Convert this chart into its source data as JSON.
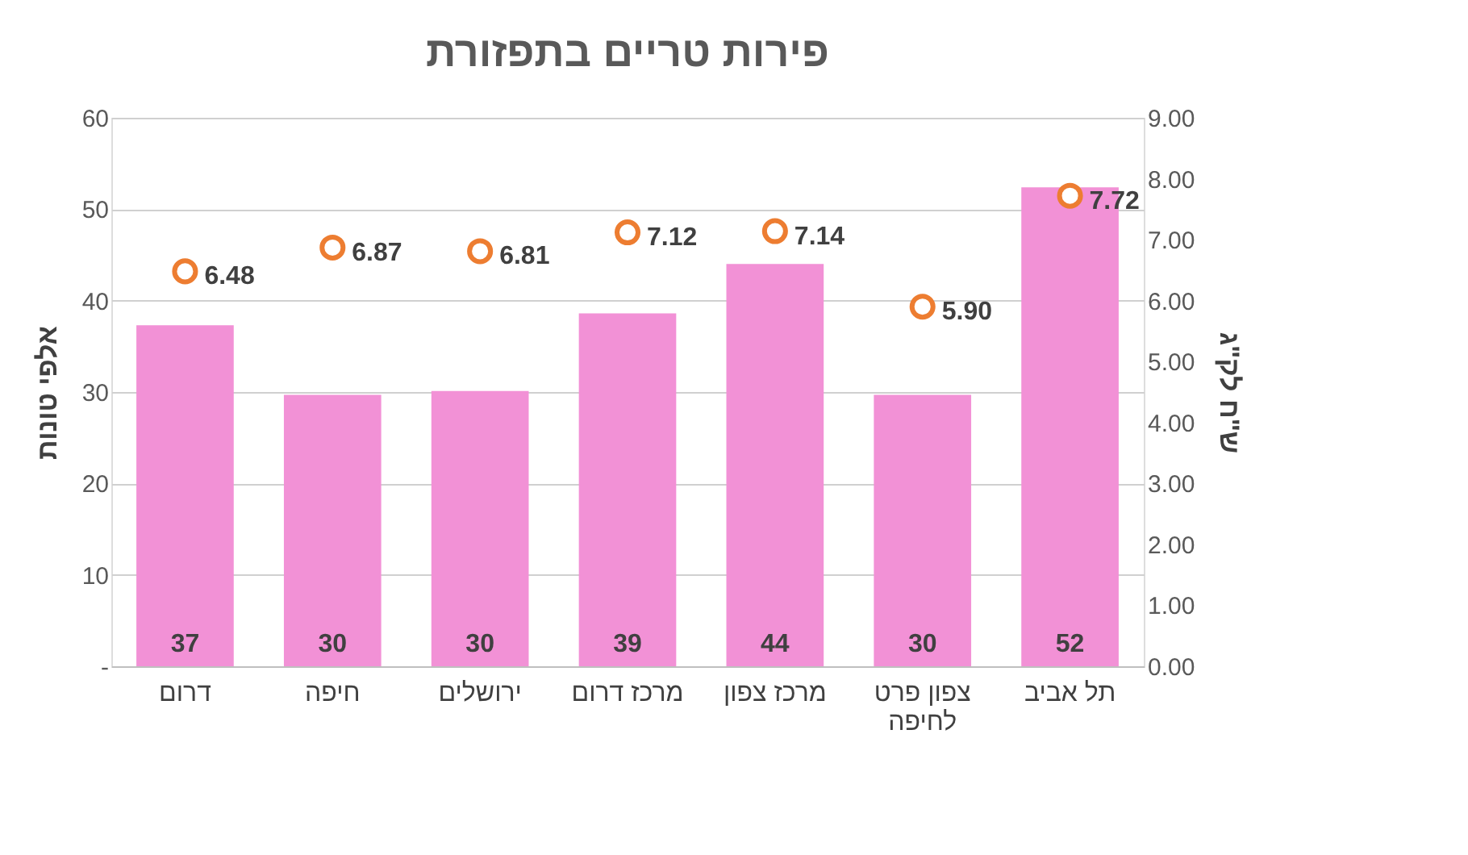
{
  "chart_data": {
    "type": "bar",
    "title": "פירות טריים בתפזורת",
    "ylabel": "אלפי טונות",
    "y2label": "ש\"ח לק\"ג",
    "categories": [
      "דרום",
      "חיפה",
      "ירושלים",
      "מרכז דרום",
      "מרכז צפון",
      "צפון פרט לחיפה",
      "תל אביב"
    ],
    "series": [
      {
        "color": "#f291d6",
        "values": [
          37.3,
          29.7,
          30.1,
          38.6,
          44.0,
          29.7,
          52.4
        ],
        "value_labels": [
          "37",
          "30",
          "30",
          "39",
          "44",
          "30",
          "52"
        ]
      },
      {
        "type": "scatter",
        "axis": "y2",
        "color": "#ed7d31",
        "marker": "circle",
        "values": [
          6.48,
          6.87,
          6.81,
          7.12,
          7.14,
          5.9,
          7.72
        ],
        "value_labels": [
          "6.48",
          "6.87",
          "6.81",
          "7.12",
          "7.14",
          "5.90",
          "7.72"
        ]
      }
    ],
    "ylim": [
      0,
      60
    ],
    "yticks": [
      {
        "value": 0,
        "label": "-"
      },
      10,
      20,
      30,
      40,
      50,
      60
    ],
    "y2lim": [
      0,
      9
    ],
    "y2ticks": [
      {
        "value": 0,
        "label": "0.00"
      },
      {
        "value": 1,
        "label": "1.00"
      },
      {
        "value": 2,
        "label": "2.00"
      },
      {
        "value": 3,
        "label": "3.00"
      },
      {
        "value": 4,
        "label": "4.00"
      },
      {
        "value": 5,
        "label": "5.00"
      },
      {
        "value": 6,
        "label": "6.00"
      },
      {
        "value": 7,
        "label": "7.00"
      },
      {
        "value": 8,
        "label": "8.00"
      },
      {
        "value": 9,
        "label": "9.00"
      }
    ],
    "grid": "y"
  }
}
